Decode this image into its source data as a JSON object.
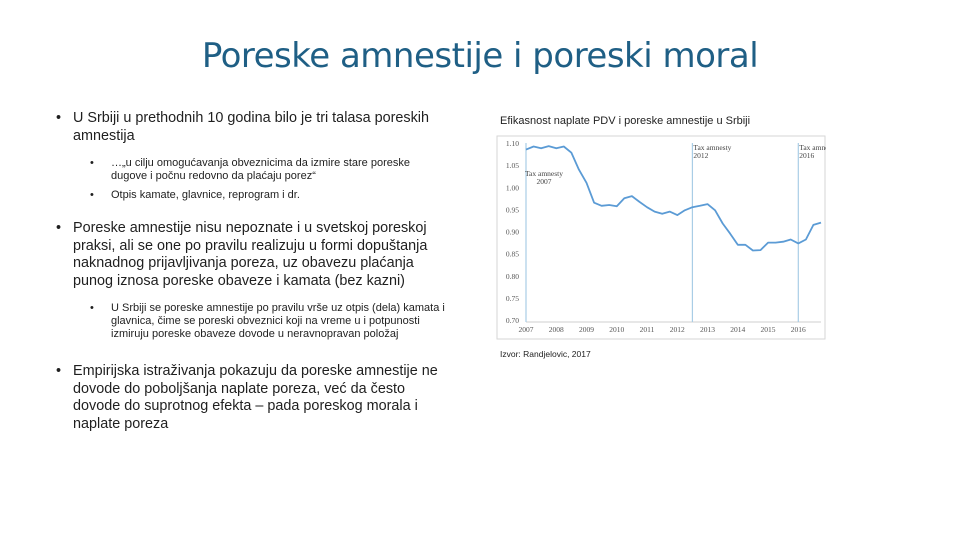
{
  "title": "Poreske amnestije i poreski moral",
  "bullets": [
    {
      "text": "U Srbiji u prethodnih 10 godina bilo je tri talasa poreskih amnestija",
      "sub": [
        "…„u cilju omogućavanja obveznicima da izmire stare poreske dugove i počnu redovno da plaćaju porez“",
        "Otpis kamate, glavnice, reprogram i dr."
      ]
    },
    {
      "text": "Poreske amnestije nisu nepoznate i u svetskoj poreskoj praksi, ali se one po pravilu realizuju u formi dopuštanja naknadnog prijavljivanja poreza, uz obavezu plaćanja punog iznosa poreske obaveze i kamata (bez kazni)",
      "sub": [
        "U Srbiji se poreske amnestije po pravilu vrše uz otpis (dela) kamata i glavnica, čime se poreski obveznici koji na vreme u i potpunosti izmiruju poreske obaveze dovode u neravnopravan položaj"
      ]
    },
    {
      "text": "Empirijska istraživanja pokazuju da poreske amnestije ne dovode do poboljšanja naplate poreza, već da često dovode do suprotnog efekta – pada poreskog morala i naplate poreza",
      "sub": []
    }
  ],
  "figure": {
    "caption": "Efikasnost naplate PDV i poreske amnestije u Srbiji",
    "source": "Izvor: Randjelovic, 2017"
  },
  "chart_data": {
    "type": "line",
    "title": "",
    "xlabel": "",
    "ylabel": "",
    "x_ticks": [
      "2007",
      "2008",
      "2009",
      "2010",
      "2011",
      "2012",
      "2013",
      "2014",
      "2015",
      "2016"
    ],
    "y_ticks": [
      "0.70",
      "0.75",
      "0.80",
      "0.85",
      "0.90",
      "0.95",
      "1.00",
      "1.05",
      "1.10"
    ],
    "xlim": [
      2007,
      2016.75
    ],
    "ylim": [
      0.7,
      1.1
    ],
    "grid": false,
    "line_color": "#5b9bd5",
    "annotation_color": "#a9cde6",
    "series": [
      {
        "x": [
          2007.0,
          2007.25,
          2007.5,
          2007.75,
          2008.0,
          2008.25,
          2008.5,
          2008.75,
          2009.0,
          2009.25,
          2009.5,
          2009.75,
          2010.0,
          2010.25,
          2010.5,
          2010.75,
          2011.0,
          2011.25,
          2011.5,
          2011.75,
          2012.0,
          2012.25,
          2012.5,
          2012.75,
          2013.0,
          2013.25,
          2013.5,
          2013.75,
          2014.0,
          2014.25,
          2014.5,
          2014.75,
          2015.0,
          2015.25,
          2015.5,
          2015.75,
          2016.0,
          2016.25,
          2016.5,
          2016.75
        ],
        "values": [
          1.085,
          1.092,
          1.088,
          1.093,
          1.088,
          1.092,
          1.078,
          1.04,
          1.01,
          0.965,
          0.958,
          0.96,
          0.957,
          0.975,
          0.98,
          0.967,
          0.955,
          0.945,
          0.94,
          0.945,
          0.937,
          0.948,
          0.955,
          0.958,
          0.962,
          0.948,
          0.918,
          0.895,
          0.87,
          0.87,
          0.857,
          0.858,
          0.875,
          0.875,
          0.877,
          0.882,
          0.873,
          0.882,
          0.915,
          0.92
        ]
      }
    ],
    "annotations": [
      {
        "x": 2007.0,
        "lines": [
          "Tax amnesty",
          "2007"
        ]
      },
      {
        "x": 2012.5,
        "lines": [
          "Tax amnesty",
          "2012"
        ]
      },
      {
        "x": 2016.0,
        "lines": [
          "Tax amnesty",
          "2016"
        ]
      }
    ]
  }
}
